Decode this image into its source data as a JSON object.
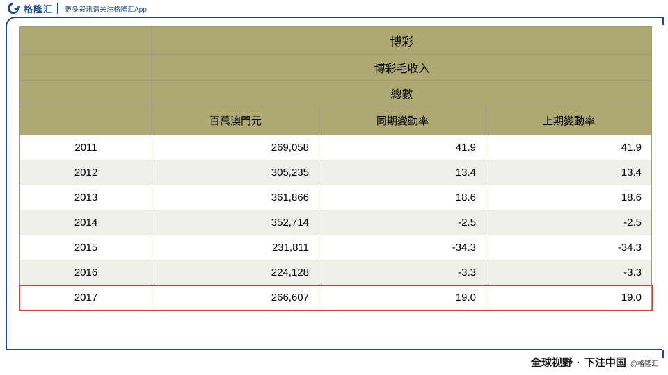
{
  "brand": "格隆汇",
  "header_sub": "更多资讯请关注格隆汇App",
  "footer_left": "全球视野",
  "footer_right": "下注中国",
  "footer_handle": "@格隆汇",
  "table": {
    "header_top": "博彩",
    "header_sub": "博彩毛收入",
    "header_sub2": "總數",
    "columns": [
      "百萬澳門元",
      "同期變動率",
      "上期變動率"
    ],
    "rows": [
      {
        "year": "2011",
        "v1": "269,058",
        "v2": "41.9",
        "v3": "41.9"
      },
      {
        "year": "2012",
        "v1": "305,235",
        "v2": "13.4",
        "v3": "13.4"
      },
      {
        "year": "2013",
        "v1": "361,866",
        "v2": "18.6",
        "v3": "18.6"
      },
      {
        "year": "2014",
        "v1": "352,714",
        "v2": "-2.5",
        "v3": "-2.5"
      },
      {
        "year": "2015",
        "v1": "231,811",
        "v2": "-34.3",
        "v3": "-34.3"
      },
      {
        "year": "2016",
        "v1": "224,128",
        "v2": "-3.3",
        "v3": "-3.3"
      },
      {
        "year": "2017",
        "v1": "266,607",
        "v2": "19.0",
        "v3": "19.0"
      }
    ],
    "highlight_row_index": 6
  },
  "watermark": {
    "chars": "格隆汇",
    "url": "www.gelonghui.com"
  },
  "colors": {
    "frame": "#1a4b8c",
    "header_bg": "#aea873",
    "row_alt_bg": "#f0f0ea",
    "border": "#9a9a86",
    "highlight": "#e53935"
  }
}
